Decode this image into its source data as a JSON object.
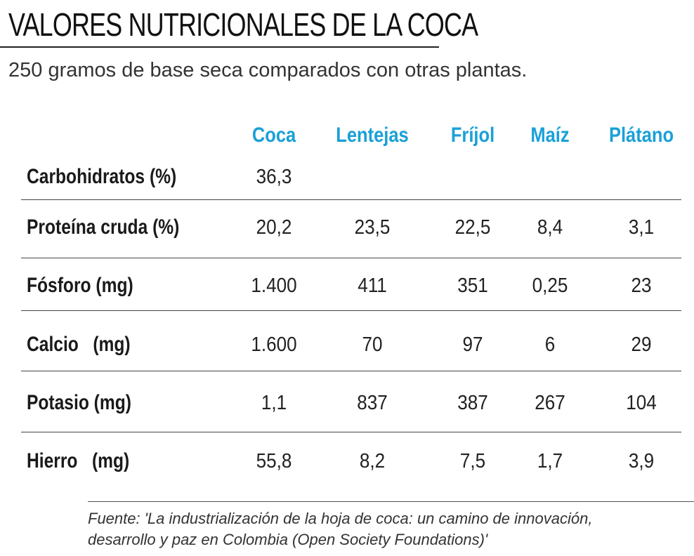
{
  "header": {
    "title": "VALORES NUTRICIONALES DE LA COCA",
    "subtitle": "250 gramos de base seca comparados con otras plantas."
  },
  "table": {
    "columns": [
      "Coca",
      "Lentejas",
      "Fríjol",
      "Maíz",
      "Plátano"
    ],
    "rows": [
      {
        "label": "Carbohidratos (%)",
        "values": [
          "36,3"
        ]
      },
      {
        "label": "Proteína cruda (%)",
        "values": [
          "20,2",
          "23,5",
          "22,5",
          "8,4",
          "3,1"
        ]
      },
      {
        "label": "Fósforo (mg)",
        "values": [
          "1.400",
          "411",
          "351",
          "0,25",
          "23"
        ]
      },
      {
        "label": "Calcio   (mg)",
        "values": [
          "1.600",
          "70",
          "97",
          "6",
          "29"
        ]
      },
      {
        "label": "Potasio (mg)",
        "values": [
          "1,1",
          "837",
          "387",
          "267",
          "104"
        ]
      },
      {
        "label": "Hierro   (mg)",
        "values": [
          "55,8",
          "8,2",
          "7,5",
          "1,7",
          "3,9"
        ]
      }
    ]
  },
  "footer": {
    "source": [
      "Fuente: 'La industrialización de la hoja de coca: un camino de innovación,",
      "desarrollo y paz en Colombia (Open Society Foundations)'"
    ]
  }
}
